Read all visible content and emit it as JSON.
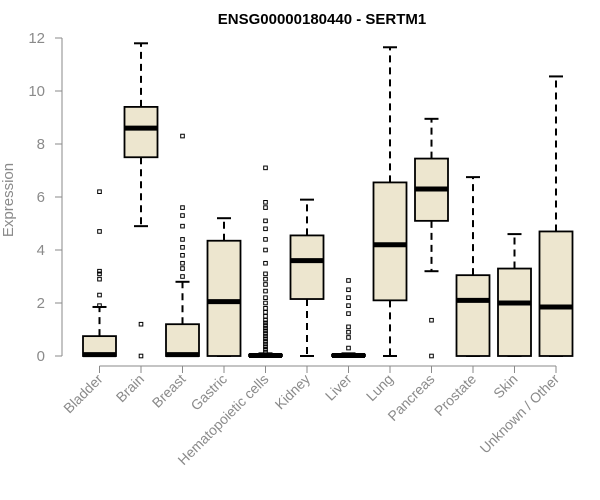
{
  "chart_data": {
    "type": "boxplot",
    "title": "ENSG00000180440 - SERTM1",
    "xlabel": "",
    "ylabel": "Expression",
    "ylim": [
      0,
      12
    ],
    "yticks": [
      0,
      2,
      4,
      6,
      8,
      10,
      12
    ],
    "grid": false,
    "colors": {
      "box_fill": "#ede6cf",
      "stroke": "#000000",
      "axis": "#8a8a8a"
    },
    "categories": [
      "Bladder",
      "Brain",
      "Breast",
      "Gastric",
      "Hematopoietic cells",
      "Kidney",
      "Liver",
      "Lung",
      "Pancreas",
      "Prostate",
      "Skin",
      "Unknown / Other"
    ],
    "boxes": [
      {
        "category": "Bladder",
        "q1": 0.0,
        "median": 0.05,
        "q3": 0.75,
        "whisker_low": 0.0,
        "whisker_high": 1.85,
        "outliers": [
          1.9,
          2.3,
          2.9,
          3.1,
          3.2,
          4.7,
          6.2
        ]
      },
      {
        "category": "Brain",
        "q1": 7.5,
        "median": 8.6,
        "q3": 9.4,
        "whisker_low": 4.9,
        "whisker_high": 11.8,
        "outliers": [
          0.0,
          1.2
        ]
      },
      {
        "category": "Breast",
        "q1": 0.0,
        "median": 0.05,
        "q3": 1.2,
        "whisker_low": 0.0,
        "whisker_high": 2.8,
        "outliers": [
          3.0,
          3.3,
          3.5,
          3.8,
          4.1,
          4.4,
          4.9,
          5.3,
          5.6,
          8.3
        ]
      },
      {
        "category": "Gastric",
        "q1": 0.0,
        "median": 2.05,
        "q3": 4.35,
        "whisker_low": 0.0,
        "whisker_high": 5.2,
        "outliers": []
      },
      {
        "category": "Hematopoietic cells",
        "q1": 0.0,
        "median": 0.02,
        "q3": 0.05,
        "whisker_low": 0.0,
        "whisker_high": 0.1,
        "outliers": [
          0.15,
          0.25,
          0.35,
          0.45,
          0.55,
          0.65,
          0.75,
          0.85,
          0.95,
          1.05,
          1.15,
          1.25,
          1.35,
          1.5,
          1.65,
          1.8,
          2.0,
          2.2,
          2.45,
          2.7,
          2.9,
          3.1,
          3.5,
          4.0,
          4.4,
          4.8,
          5.1,
          5.6,
          5.8,
          7.1
        ]
      },
      {
        "category": "Kidney",
        "q1": 2.15,
        "median": 3.6,
        "q3": 4.55,
        "whisker_low": 0.0,
        "whisker_high": 5.9,
        "outliers": []
      },
      {
        "category": "Liver",
        "q1": 0.0,
        "median": 0.02,
        "q3": 0.05,
        "whisker_low": 0.0,
        "whisker_high": 0.1,
        "outliers": [
          0.3,
          0.7,
          0.9,
          1.1,
          1.6,
          1.9,
          2.2,
          2.5,
          2.85
        ]
      },
      {
        "category": "Lung",
        "q1": 2.1,
        "median": 4.2,
        "q3": 6.55,
        "whisker_low": 0.0,
        "whisker_high": 11.65,
        "outliers": []
      },
      {
        "category": "Pancreas",
        "q1": 5.1,
        "median": 6.3,
        "q3": 7.45,
        "whisker_low": 3.2,
        "whisker_high": 8.95,
        "outliers": [
          0.0,
          1.35
        ]
      },
      {
        "category": "Prostate",
        "q1": 0.0,
        "median": 2.1,
        "q3": 3.05,
        "whisker_low": 0.0,
        "whisker_high": 6.75,
        "outliers": []
      },
      {
        "category": "Skin",
        "q1": 0.0,
        "median": 2.0,
        "q3": 3.3,
        "whisker_low": 0.0,
        "whisker_high": 4.6,
        "outliers": []
      },
      {
        "category": "Unknown / Other",
        "q1": 0.0,
        "median": 1.85,
        "q3": 4.7,
        "whisker_low": 0.0,
        "whisker_high": 10.55,
        "outliers": []
      }
    ]
  }
}
